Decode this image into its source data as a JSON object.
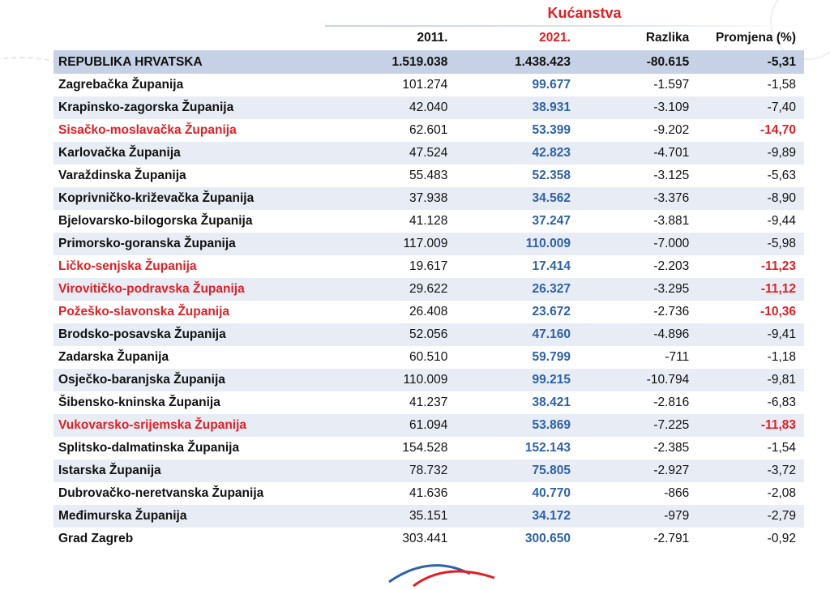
{
  "group_title": "Kućanstva",
  "headers": {
    "y2011": "2011.",
    "y2021": "2021.",
    "diff": "Razlika",
    "pct": "Promjena (%)"
  },
  "total": {
    "name": "REPUBLIKA HRVATSKA",
    "y2011": "1.519.038",
    "y2021": "1.438.423",
    "diff": "-80.615",
    "pct": "-5,31"
  },
  "rows": [
    {
      "name": "Zagrebačka Županija",
      "y2011": "101.274",
      "y2021": "99.677",
      "diff": "-1.597",
      "pct": "-1,58",
      "highlight": false
    },
    {
      "name": "Krapinsko-zagorska Županija",
      "y2011": "42.040",
      "y2021": "38.931",
      "diff": "-3.109",
      "pct": "-7,40",
      "highlight": false
    },
    {
      "name": "Sisačko-moslavačka Županija",
      "y2011": "62.601",
      "y2021": "53.399",
      "diff": "-9.202",
      "pct": "-14,70",
      "highlight": true
    },
    {
      "name": "Karlovačka Županija",
      "y2011": "47.524",
      "y2021": "42.823",
      "diff": "-4.701",
      "pct": "-9,89",
      "highlight": false
    },
    {
      "name": "Varaždinska Županija",
      "y2011": "55.483",
      "y2021": "52.358",
      "diff": "-3.125",
      "pct": "-5,63",
      "highlight": false
    },
    {
      "name": "Koprivničko-križevačka Županija",
      "y2011": "37.938",
      "y2021": "34.562",
      "diff": "-3.376",
      "pct": "-8,90",
      "highlight": false
    },
    {
      "name": "Bjelovarsko-bilogorska Županija",
      "y2011": "41.128",
      "y2021": "37.247",
      "diff": "-3.881",
      "pct": "-9,44",
      "highlight": false
    },
    {
      "name": "Primorsko-goranska Županija",
      "y2011": "117.009",
      "y2021": "110.009",
      "diff": "-7.000",
      "pct": "-5,98",
      "highlight": false
    },
    {
      "name": "Ličko-senjska Županija",
      "y2011": "19.617",
      "y2021": "17.414",
      "diff": "-2.203",
      "pct": "-11,23",
      "highlight": true
    },
    {
      "name": "Virovitičko-podravska Županija",
      "y2011": "29.622",
      "y2021": "26.327",
      "diff": "-3.295",
      "pct": "-11,12",
      "highlight": true
    },
    {
      "name": "Požeško-slavonska Županija",
      "y2011": "26.408",
      "y2021": "23.672",
      "diff": "-2.736",
      "pct": "-10,36",
      "highlight": true
    },
    {
      "name": "Brodsko-posavska Županija",
      "y2011": "52.056",
      "y2021": "47.160",
      "diff": "-4.896",
      "pct": "-9,41",
      "highlight": false
    },
    {
      "name": "Zadarska Županija",
      "y2011": "60.510",
      "y2021": "59.799",
      "diff": "-711",
      "pct": "-1,18",
      "highlight": false
    },
    {
      "name": "Osječko-baranjska Županija",
      "y2011": "110.009",
      "y2021": "99.215",
      "diff": "-10.794",
      "pct": "-9,81",
      "highlight": false
    },
    {
      "name": "Šibensko-kninska Županija",
      "y2011": "41.237",
      "y2021": "38.421",
      "diff": "-2.816",
      "pct": "-6,83",
      "highlight": false
    },
    {
      "name": "Vukovarsko-srijemska Županija",
      "y2011": "61.094",
      "y2021": "53.869",
      "diff": "-7.225",
      "pct": "-11,83",
      "highlight": true
    },
    {
      "name": "Splitsko-dalmatinska Županija",
      "y2011": "154.528",
      "y2021": "152.143",
      "diff": "-2.385",
      "pct": "-1,54",
      "highlight": false
    },
    {
      "name": "Istarska Županija",
      "y2011": "78.732",
      "y2021": "75.805",
      "diff": "-2.927",
      "pct": "-3,72",
      "highlight": false
    },
    {
      "name": "Dubrovačko-neretvanska Županija",
      "y2011": "41.636",
      "y2021": "40.770",
      "diff": "-866",
      "pct": "-2,08",
      "highlight": false
    },
    {
      "name": "Međimurska Županija",
      "y2011": "35.151",
      "y2021": "34.172",
      "diff": "-979",
      "pct": "-2,79",
      "highlight": false
    },
    {
      "name": "Grad Zagreb",
      "y2011": "303.441",
      "y2021": "300.650",
      "diff": "-2.791",
      "pct": "-0,92",
      "highlight": false
    }
  ],
  "colors": {
    "accent_red": "#e31e24",
    "value_blue": "#2e62a8",
    "total_row_bg": "#c6d1e6",
    "stripe_bg": "#e8ecf5"
  }
}
